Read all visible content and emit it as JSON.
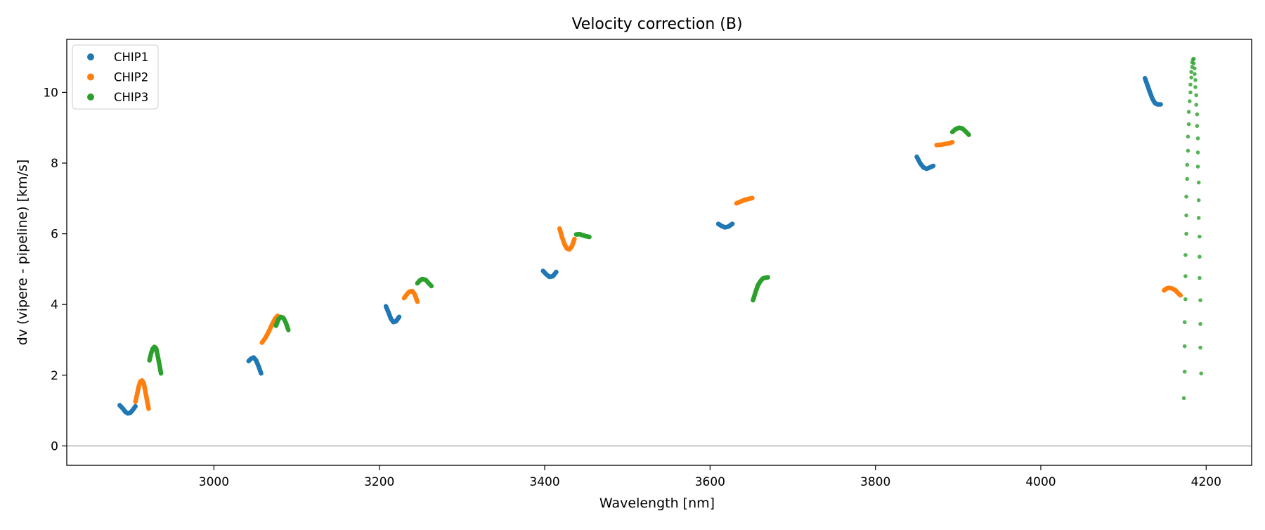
{
  "chart_data": {
    "type": "scatter",
    "title": "Velocity correction (B)",
    "xlabel": "Wavelength [nm]",
    "ylabel": "dv (vipere - pipeline) [km/s]",
    "xlim": [
      2822,
      4255
    ],
    "ylim": [
      -0.55,
      11.5
    ],
    "xticks": [
      3000,
      3200,
      3400,
      3600,
      3800,
      4000,
      4200
    ],
    "yticks": [
      0,
      2,
      4,
      6,
      8,
      10
    ],
    "grid": false,
    "reference_line": {
      "y": 0,
      "color": "#808080"
    },
    "legend": {
      "placement": "top-left"
    },
    "series": [
      {
        "name": "CHIP1",
        "color": "#1f77b4",
        "segments": [
          [
            [
              2886,
              1.15
            ],
            [
              2890,
              1.05
            ],
            [
              2893,
              0.96
            ],
            [
              2896,
              0.92
            ],
            [
              2899,
              0.94
            ],
            [
              2902,
              1.02
            ],
            [
              2905,
              1.12
            ]
          ],
          [
            [
              3042,
              2.4
            ],
            [
              3045,
              2.47
            ],
            [
              3048,
              2.5
            ],
            [
              3051,
              2.42
            ],
            [
              3054,
              2.25
            ],
            [
              3057,
              2.05
            ]
          ],
          [
            [
              3208,
              3.95
            ],
            [
              3211,
              3.78
            ],
            [
              3214,
              3.6
            ],
            [
              3217,
              3.5
            ],
            [
              3220,
              3.52
            ],
            [
              3224,
              3.65
            ]
          ],
          [
            [
              3398,
              4.95
            ],
            [
              3402,
              4.85
            ],
            [
              3406,
              4.78
            ],
            [
              3410,
              4.8
            ],
            [
              3414,
              4.92
            ]
          ],
          [
            [
              3610,
              6.28
            ],
            [
              3614,
              6.22
            ],
            [
              3618,
              6.18
            ],
            [
              3622,
              6.2
            ],
            [
              3627,
              6.28
            ]
          ],
          [
            [
              3850,
              8.18
            ],
            [
              3854,
              8.0
            ],
            [
              3858,
              7.88
            ],
            [
              3862,
              7.84
            ],
            [
              3866,
              7.88
            ],
            [
              3870,
              7.92
            ]
          ],
          [
            [
              4126,
              10.4
            ],
            [
              4129,
              10.2
            ],
            [
              4132,
              10.0
            ],
            [
              4135,
              9.82
            ],
            [
              4138,
              9.7
            ],
            [
              4141,
              9.66
            ],
            [
              4145,
              9.66
            ]
          ]
        ]
      },
      {
        "name": "CHIP2",
        "color": "#ff7f0e",
        "segments": [
          [
            [
              2905,
              1.25
            ],
            [
              2907,
              1.45
            ],
            [
              2909,
              1.68
            ],
            [
              2911,
              1.82
            ],
            [
              2913,
              1.85
            ],
            [
              2915,
              1.78
            ],
            [
              2917,
              1.55
            ],
            [
              2919,
              1.3
            ],
            [
              2921,
              1.05
            ]
          ],
          [
            [
              3058,
              2.92
            ],
            [
              3062,
              3.05
            ],
            [
              3066,
              3.22
            ],
            [
              3070,
              3.42
            ],
            [
              3074,
              3.6
            ],
            [
              3077,
              3.68
            ]
          ],
          [
            [
              3230,
              4.18
            ],
            [
              3233,
              4.28
            ],
            [
              3236,
              4.36
            ],
            [
              3240,
              4.38
            ],
            [
              3243,
              4.28
            ],
            [
              3246,
              4.08
            ]
          ],
          [
            [
              3418,
              6.15
            ],
            [
              3421,
              5.9
            ],
            [
              3424,
              5.7
            ],
            [
              3427,
              5.58
            ],
            [
              3430,
              5.56
            ],
            [
              3433,
              5.65
            ],
            [
              3436,
              5.85
            ]
          ],
          [
            [
              3632,
              6.86
            ],
            [
              3637,
              6.91
            ],
            [
              3642,
              6.96
            ],
            [
              3647,
              6.99
            ],
            [
              3651,
              7.01
            ]
          ],
          [
            [
              3874,
              8.51
            ],
            [
              3879,
              8.52
            ],
            [
              3884,
              8.54
            ],
            [
              3889,
              8.56
            ],
            [
              3893,
              8.59
            ]
          ],
          [
            [
              4149,
              4.4
            ],
            [
              4152,
              4.45
            ],
            [
              4155,
              4.47
            ],
            [
              4159,
              4.45
            ],
            [
              4163,
              4.4
            ],
            [
              4166,
              4.32
            ],
            [
              4169,
              4.26
            ]
          ]
        ]
      },
      {
        "name": "CHIP3",
        "color": "#2ca02c",
        "segments": [
          [
            [
              2922,
              2.42
            ],
            [
              2924,
              2.62
            ],
            [
              2926,
              2.75
            ],
            [
              2928,
              2.8
            ],
            [
              2930,
              2.76
            ],
            [
              2932,
              2.55
            ],
            [
              2934,
              2.3
            ],
            [
              2936,
              2.05
            ]
          ],
          [
            [
              3075,
              3.4
            ],
            [
              3078,
              3.58
            ],
            [
              3081,
              3.65
            ],
            [
              3084,
              3.62
            ],
            [
              3087,
              3.48
            ],
            [
              3090,
              3.28
            ]
          ],
          [
            [
              3246,
              4.6
            ],
            [
              3249,
              4.68
            ],
            [
              3252,
              4.72
            ],
            [
              3256,
              4.7
            ],
            [
              3259,
              4.62
            ],
            [
              3263,
              4.52
            ]
          ],
          [
            [
              3438,
              5.98
            ],
            [
              3442,
              5.99
            ],
            [
              3446,
              5.96
            ],
            [
              3450,
              5.93
            ],
            [
              3454,
              5.91
            ]
          ],
          [
            [
              3652,
              4.12
            ],
            [
              3655,
              4.35
            ],
            [
              3658,
              4.55
            ],
            [
              3661,
              4.66
            ],
            [
              3664,
              4.74
            ],
            [
              3667,
              4.76
            ],
            [
              3670,
              4.77
            ]
          ],
          [
            [
              3893,
              8.88
            ],
            [
              3897,
              8.96
            ],
            [
              3901,
              9.0
            ],
            [
              3905,
              8.98
            ],
            [
              3909,
              8.9
            ],
            [
              3913,
              8.8
            ]
          ]
        ]
      }
    ],
    "scatter_points": [
      {
        "name": "CHIP3",
        "color": "#2ca02c",
        "points": [
          [
            4173,
            1.35
          ],
          [
            4174,
            2.1
          ],
          [
            4174,
            2.82
          ],
          [
            4174,
            3.5
          ],
          [
            4175,
            4.15
          ],
          [
            4175,
            4.8
          ],
          [
            4175,
            5.4
          ],
          [
            4176,
            6.0
          ],
          [
            4176,
            6.52
          ],
          [
            4176,
            7.05
          ],
          [
            4177,
            7.55
          ],
          [
            4177,
            7.95
          ],
          [
            4178,
            8.35
          ],
          [
            4178,
            8.75
          ],
          [
            4179,
            9.1
          ],
          [
            4179,
            9.45
          ],
          [
            4180,
            9.75
          ],
          [
            4181,
            10.0
          ],
          [
            4181,
            10.22
          ],
          [
            4182,
            10.42
          ],
          [
            4182,
            10.58
          ],
          [
            4183,
            10.72
          ],
          [
            4183,
            10.85
          ],
          [
            4184,
            10.93
          ],
          [
            4185,
            10.95
          ],
          [
            4185,
            10.82
          ],
          [
            4186,
            10.68
          ],
          [
            4186,
            10.52
          ],
          [
            4187,
            10.35
          ],
          [
            4187,
            10.15
          ],
          [
            4188,
            9.92
          ],
          [
            4188,
            9.65
          ],
          [
            4189,
            9.38
          ],
          [
            4189,
            9.05
          ],
          [
            4190,
            8.7
          ],
          [
            4190,
            8.3
          ],
          [
            4190,
            7.9
          ],
          [
            4191,
            7.45
          ],
          [
            4191,
            6.95
          ],
          [
            4191,
            6.45
          ],
          [
            4192,
            5.92
          ],
          [
            4192,
            5.35
          ],
          [
            4192,
            4.75
          ],
          [
            4193,
            4.12
          ],
          [
            4193,
            3.45
          ],
          [
            4193,
            2.78
          ],
          [
            4194,
            2.05
          ]
        ]
      }
    ]
  }
}
